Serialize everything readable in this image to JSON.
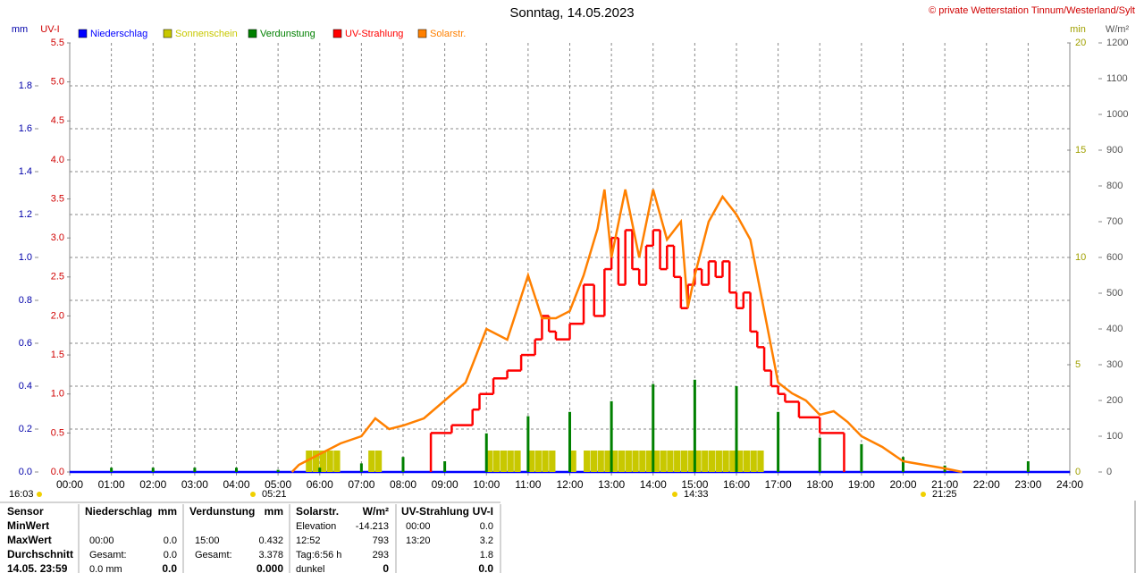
{
  "chart_data": {
    "type": "line",
    "title": "Sonntag, 14.05.2023",
    "copyright": "© private Wetterstation Tinnum/Westerland/Sylt",
    "ylabel": "mm",
    "y2label": "UV-I",
    "y3label": "min",
    "y4label": "W/m²",
    "xlim": [
      0,
      1440
    ],
    "xticks": [
      {
        "value": 0,
        "label": "00:00"
      },
      {
        "value": 60,
        "label": "01:00"
      },
      {
        "value": 120,
        "label": "02:00"
      },
      {
        "value": 180,
        "label": "03:00"
      },
      {
        "value": 240,
        "label": "04:00"
      },
      {
        "value": 300,
        "label": "05:00"
      },
      {
        "value": 360,
        "label": "06:00"
      },
      {
        "value": 420,
        "label": "07:00"
      },
      {
        "value": 480,
        "label": "08:00"
      },
      {
        "value": 540,
        "label": "09:00"
      },
      {
        "value": 600,
        "label": "10:00"
      },
      {
        "value": 660,
        "label": "11:00"
      },
      {
        "value": 720,
        "label": "12:00"
      },
      {
        "value": 780,
        "label": "13:00"
      },
      {
        "value": 840,
        "label": "14:00"
      },
      {
        "value": 900,
        "label": "15:00"
      },
      {
        "value": 960,
        "label": "16:00"
      },
      {
        "value": 1020,
        "label": "17:00"
      },
      {
        "value": 1080,
        "label": "18:00"
      },
      {
        "value": 1140,
        "label": "19:00"
      },
      {
        "value": 1200,
        "label": "20:00"
      },
      {
        "value": 1260,
        "label": "21:00"
      },
      {
        "value": 1320,
        "label": "22:00"
      },
      {
        "value": 1380,
        "label": "23:00"
      },
      {
        "value": 1440,
        "label": "24:00"
      }
    ],
    "ylim": [
      0,
      2
    ],
    "yticks": [
      {
        "value": 0,
        "label": "0.0"
      },
      0.2,
      0.4,
      0.6,
      0.8,
      {
        "value": 1,
        "label": "1.0"
      },
      1.2,
      1.4,
      1.6,
      1.8
    ],
    "y2lim": [
      0,
      5.5
    ],
    "y2ticks": [
      {
        "value": 0,
        "label": "0.0"
      },
      0.5,
      {
        "value": 1,
        "label": "1.0"
      },
      1.5,
      {
        "value": 2,
        "label": "2.0"
      },
      2.5,
      {
        "value": 3,
        "label": "3.0"
      },
      3.5,
      {
        "value": 4,
        "label": "4.0"
      },
      4.5,
      {
        "value": 5,
        "label": "5.0"
      },
      5.5
    ],
    "y3lim": [
      0,
      20
    ],
    "y3ticks": [
      0,
      5,
      10,
      15,
      20
    ],
    "y4lim": [
      0,
      1200
    ],
    "y4ticks": [
      0,
      100,
      200,
      300,
      400,
      500,
      600,
      700,
      800,
      900,
      1000,
      1100,
      1200
    ],
    "grid": true,
    "annotations": [
      "16:03",
      "05:21",
      "14:33",
      "21:25"
    ],
    "series": [
      {
        "name": "Niederschlag",
        "color": "#0000ff",
        "style": "line",
        "axis": "y",
        "x": [
          0,
          1440
        ],
        "values": [
          0,
          0
        ]
      },
      {
        "name": "Sonnenschein",
        "color": "#c8c800",
        "style": "bar",
        "axis": "y3",
        "x": [
          340,
          350,
          360,
          370,
          380,
          430,
          440,
          600,
          610,
          620,
          630,
          640,
          660,
          670,
          680,
          690,
          720,
          740,
          750,
          760,
          770,
          780,
          790,
          800,
          810,
          820,
          830,
          840,
          850,
          860,
          870,
          880,
          890,
          900,
          910,
          920,
          930,
          940,
          950,
          960,
          970,
          980,
          990
        ],
        "values": [
          1,
          1,
          1,
          1,
          1,
          1,
          1,
          1,
          1,
          1,
          1,
          1,
          1,
          1,
          1,
          1,
          1,
          1,
          1,
          1,
          1,
          1,
          1,
          1,
          1,
          1,
          1,
          1,
          1,
          1,
          1,
          1,
          1,
          1,
          1,
          1,
          1,
          1,
          1,
          1,
          1,
          1,
          1
        ]
      },
      {
        "name": "Verdunstung",
        "color": "#008000",
        "style": "bar",
        "axis": "y",
        "x": [
          60,
          120,
          180,
          240,
          300,
          360,
          420,
          480,
          540,
          600,
          660,
          720,
          780,
          840,
          900,
          960,
          1020,
          1080,
          1140,
          1200,
          1260,
          1380
        ],
        "values": [
          0.02,
          0.02,
          0.02,
          0.02,
          0.01,
          0.02,
          0.04,
          0.07,
          0.05,
          0.18,
          0.26,
          0.28,
          0.33,
          0.41,
          0.43,
          0.4,
          0.28,
          0.16,
          0.13,
          0.07,
          0.03,
          0.05
        ]
      },
      {
        "name": "UV-Strahlung",
        "color": "#ff0000",
        "style": "step",
        "axis": "y2",
        "x": [
          520,
          550,
          580,
          590,
          610,
          630,
          650,
          670,
          680,
          690,
          700,
          720,
          740,
          755,
          770,
          780,
          790,
          800,
          810,
          820,
          830,
          840,
          850,
          860,
          870,
          880,
          890,
          900,
          910,
          920,
          930,
          940,
          950,
          960,
          970,
          980,
          990,
          1000,
          1010,
          1020,
          1030,
          1050,
          1080,
          1115
        ],
        "values": [
          0.5,
          0.6,
          0.8,
          1.0,
          1.2,
          1.3,
          1.5,
          1.7,
          2.0,
          1.8,
          1.7,
          1.9,
          2.4,
          2.0,
          2.6,
          3.0,
          2.4,
          3.1,
          2.6,
          2.4,
          2.9,
          3.1,
          2.6,
          2.9,
          2.5,
          2.1,
          2.4,
          2.6,
          2.4,
          2.7,
          2.5,
          2.7,
          2.3,
          2.1,
          2.3,
          1.8,
          1.6,
          1.3,
          1.1,
          1.0,
          0.9,
          0.7,
          0.5,
          0
        ]
      },
      {
        "name": "Solarstr.",
        "color": "#ff8000",
        "style": "line",
        "axis": "y4",
        "x": [
          320,
          330,
          360,
          390,
          420,
          440,
          460,
          480,
          510,
          540,
          570,
          600,
          630,
          660,
          680,
          700,
          720,
          740,
          760,
          770,
          780,
          800,
          820,
          840,
          860,
          880,
          890,
          900,
          920,
          940,
          960,
          980,
          1000,
          1020,
          1040,
          1060,
          1080,
          1100,
          1120,
          1140,
          1170,
          1200,
          1230,
          1260,
          1285
        ],
        "values": [
          0,
          20,
          50,
          80,
          100,
          150,
          120,
          130,
          150,
          200,
          250,
          400,
          370,
          550,
          430,
          430,
          450,
          550,
          680,
          790,
          600,
          790,
          600,
          790,
          650,
          700,
          460,
          550,
          700,
          770,
          720,
          650,
          450,
          250,
          220,
          200,
          160,
          170,
          140,
          100,
          70,
          30,
          20,
          10,
          0
        ]
      }
    ]
  },
  "table": {
    "header": [
      "Sensor",
      "Niederschlag",
      "mm",
      "Verdunstung",
      "mm",
      "Solarstr.",
      "W/m²",
      "UV-Strahlung",
      "UV-I"
    ],
    "rows": [
      [
        "MinWert",
        null,
        null,
        null,
        null,
        "Elevation",
        "-14.213",
        "00:00",
        "0.0"
      ],
      [
        "MaxWert",
        "00:00",
        "0.0",
        "15:00",
        "0.432",
        "12:52",
        "793",
        "13:20",
        "3.2"
      ],
      [
        "Durchschnitt",
        "Gesamt:",
        "0.0",
        "Gesamt:",
        "3.378",
        "Tag:6:56 h",
        "293",
        null,
        "1.8"
      ],
      [
        "14.05. 23:59",
        "0.0 mm",
        "0.0",
        null,
        "0.000",
        "dunkel",
        "0",
        null,
        "0.0"
      ]
    ]
  }
}
